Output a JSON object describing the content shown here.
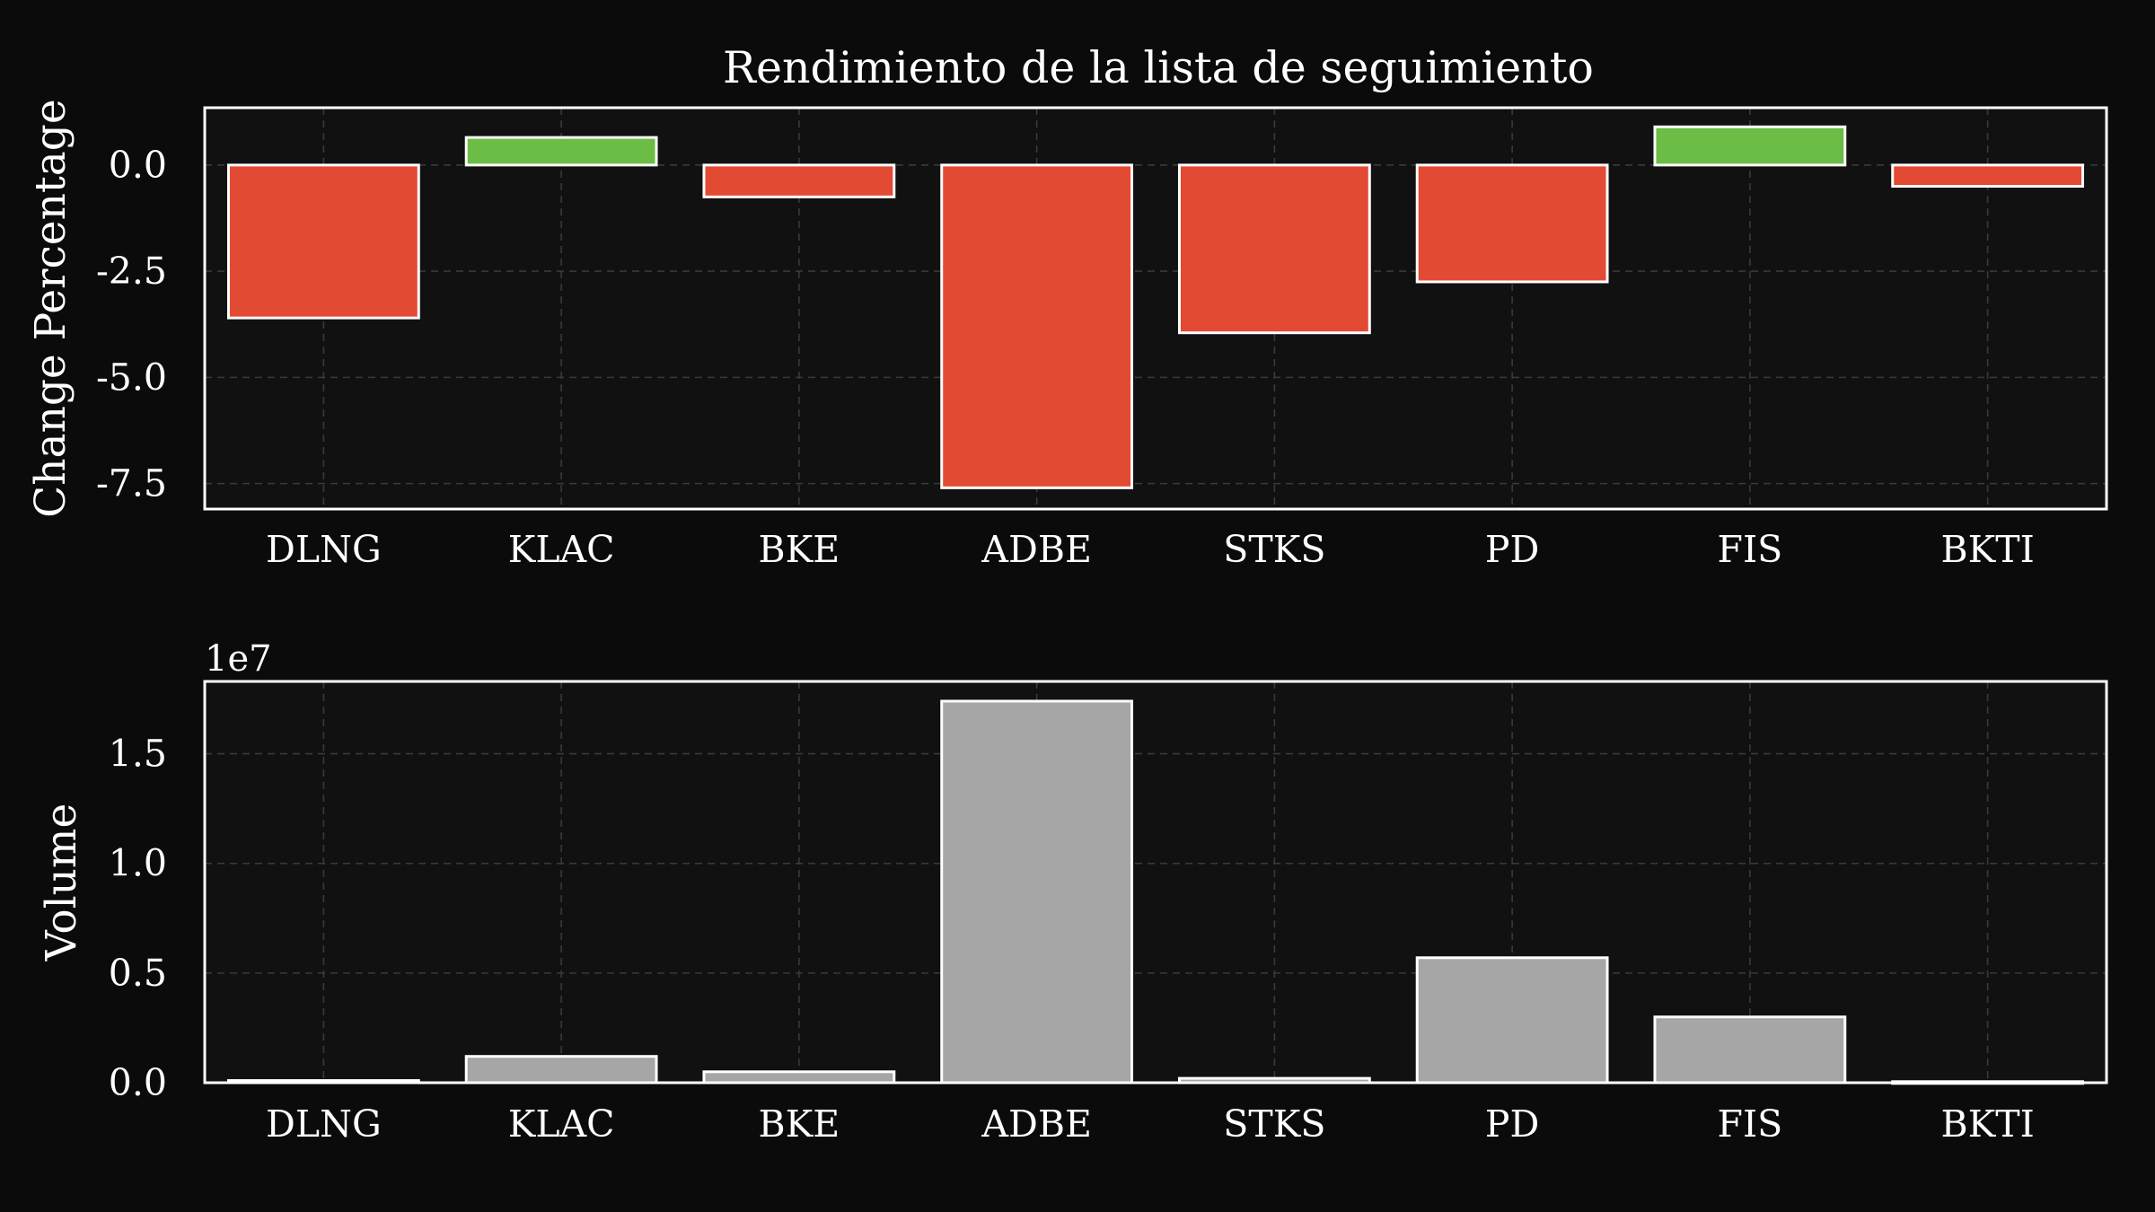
{
  "chart_data": {
    "title": "Rendimiento de la lista de seguimiento",
    "panels": [
      {
        "type": "bar",
        "categories": [
          "DLNG",
          "KLAC",
          "BKE",
          "ADBE",
          "STKS",
          "PD",
          "FIS",
          "BKTI"
        ],
        "values": [
          -3.6,
          0.65,
          -0.75,
          -7.6,
          -3.95,
          -2.75,
          0.9,
          -0.5
        ],
        "ylabel": "Change Percentage",
        "xlabel": "",
        "ylim": [
          -8.1,
          1.35
        ],
        "yticks": [
          0.0,
          -2.5,
          -5.0,
          -7.5
        ],
        "ytick_labels": [
          "0.0",
          "-2.5",
          "-5.0",
          "-7.5"
        ],
        "positive_color": "#6bbd45",
        "negative_color": "#e34a33",
        "grid": true
      },
      {
        "type": "bar",
        "categories": [
          "DLNG",
          "KLAC",
          "BKE",
          "ADBE",
          "STKS",
          "PD",
          "FIS",
          "BKTI"
        ],
        "values": [
          0.1,
          1.2,
          0.5,
          17.4,
          0.2,
          5.7,
          3.0,
          0.05
        ],
        "ylabel": "Volume",
        "xlabel": "",
        "scale_label": "1e7",
        "ylim": [
          0,
          18.3
        ],
        "yticks": [
          0.0,
          0.5,
          1.0,
          1.5
        ],
        "ytick_values": [
          0,
          5,
          10,
          15
        ],
        "ytick_labels": [
          "0.0",
          "0.5",
          "1.0",
          "1.5"
        ],
        "bar_color": "#a6a6a6",
        "grid": true
      }
    ]
  }
}
